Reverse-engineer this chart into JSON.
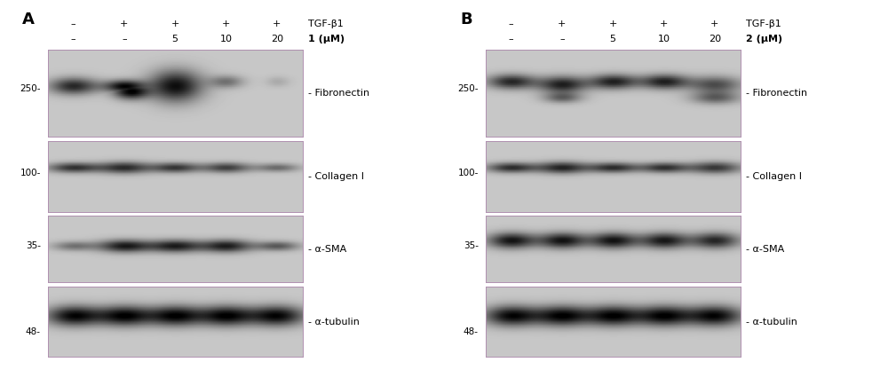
{
  "fig_width": 10.0,
  "fig_height": 4.17,
  "bg_color": "#ffffff",
  "panel_A_label": "A",
  "panel_B_label": "B",
  "row_labels_A": [
    "- Fibronectin",
    "- Collagen I",
    "- α-SMA",
    "- α-tubulin"
  ],
  "row_labels_B": [
    "- Fibronectin",
    "- Collagen I",
    "- α-SMA",
    "- α-tubulin"
  ],
  "mw_labels": [
    "250-",
    "100-",
    "35-",
    "48-"
  ],
  "tgf_row": [
    "–",
    "+",
    "+",
    "+",
    "+"
  ],
  "conc_row_A": [
    "–",
    "–",
    "5",
    "10",
    "20"
  ],
  "conc_row_B": [
    "–",
    "–",
    "5",
    "10",
    "20"
  ],
  "tgf_label": "TGF-β1",
  "conc_label_A": "1 (μM)",
  "conc_label_B": "2 (μM)",
  "blot_bg": 0.78,
  "blot_bg_pink": true,
  "border_color": "#b8a0b8"
}
